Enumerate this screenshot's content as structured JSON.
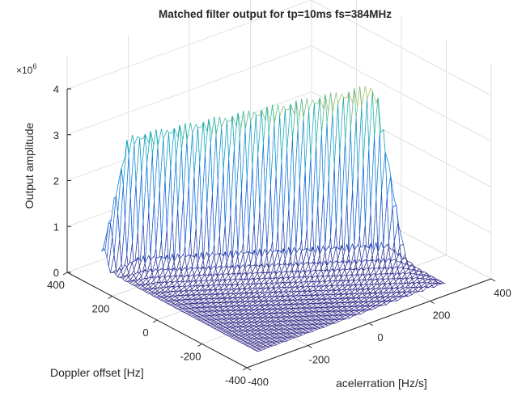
{
  "chart_data": {
    "type": "mesh",
    "title": "Matched filter output for tp=10ms fs=384MHz",
    "xlabel": "acelerration [Hz/s]",
    "ylabel": "Doppler offset [Hz]",
    "zlabel": "Output amplitude",
    "z_exponent_label": "×10",
    "z_exponent": "6",
    "xlim": [
      -400,
      400
    ],
    "ylim": [
      -400,
      400
    ],
    "zlim": [
      0,
      4000000
    ],
    "x_ticks": [
      "-400",
      "-200",
      "0",
      "200",
      "400"
    ],
    "y_ticks": [
      "400",
      "200",
      "0",
      "-200",
      "-400"
    ],
    "z_ticks": [
      "0",
      "1",
      "2",
      "3",
      "4"
    ],
    "grid": true,
    "colormap": "parula",
    "ridge_peak": [
      {
        "acceleration": -200,
        "doppler": 250,
        "amplitude": 3050000
      },
      {
        "acceleration": 0,
        "doppler": 90,
        "amplitude": 3450000
      },
      {
        "acceleration": 250,
        "doppler": -110,
        "amplitude": 3900000
      }
    ]
  }
}
